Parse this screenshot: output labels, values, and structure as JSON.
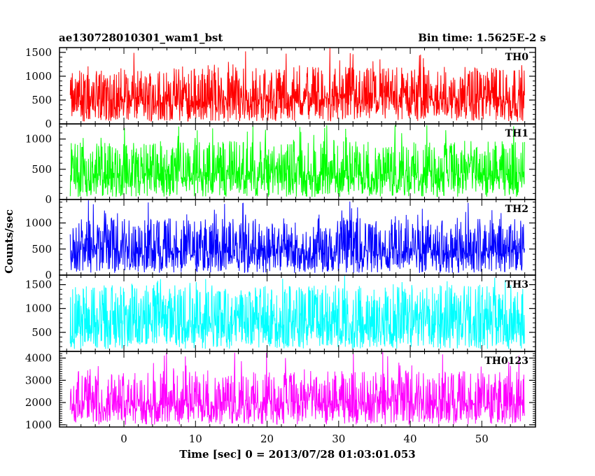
{
  "chart_data": {
    "type": "line",
    "title": "ae130728010301_wam1_bst",
    "subtitle": "Bin time: 1.5625E-2 s",
    "xlabel": "Time [sec] 0 = 2013/07/28 01:03:01.053",
    "ylabel": "Counts/sec",
    "xlim": [
      -9,
      57.5
    ],
    "x_ticks": [
      0,
      10,
      20,
      30,
      40,
      50
    ],
    "x_data_range": [
      -7.5,
      56
    ],
    "bin_time_s": 0.015625,
    "grid": false,
    "panels": [
      {
        "name": "TH0",
        "color": "#ff0000",
        "ylim": [
          0,
          1600
        ],
        "y_ticks": [
          0,
          500,
          1000,
          1500
        ],
        "base_mean": 600,
        "base_low": 50,
        "peak_max": 1600
      },
      {
        "name": "TH1",
        "color": "#00ff00",
        "ylim": [
          0,
          1250
        ],
        "y_ticks": [
          0,
          500,
          1000
        ],
        "base_mean": 500,
        "base_low": 40,
        "peak_max": 1250
      },
      {
        "name": "TH2",
        "color": "#0000ff",
        "ylim": [
          0,
          1450
        ],
        "y_ticks": [
          0,
          500,
          1000
        ],
        "base_mean": 550,
        "base_low": 40,
        "peak_max": 1450
      },
      {
        "name": "TH3",
        "color": "#00ffff",
        "ylim": [
          100,
          1700
        ],
        "y_ticks": [
          500,
          1000,
          1500
        ],
        "base_mean": 900,
        "base_low": 150,
        "peak_max": 1700
      },
      {
        "name": "TH0123",
        "color": "#ff00ff",
        "ylim": [
          900,
          4300
        ],
        "y_ticks": [
          1000,
          2000,
          3000,
          4000
        ],
        "base_mean": 2150,
        "base_low": 1000,
        "peak_max": 4300
      }
    ]
  }
}
